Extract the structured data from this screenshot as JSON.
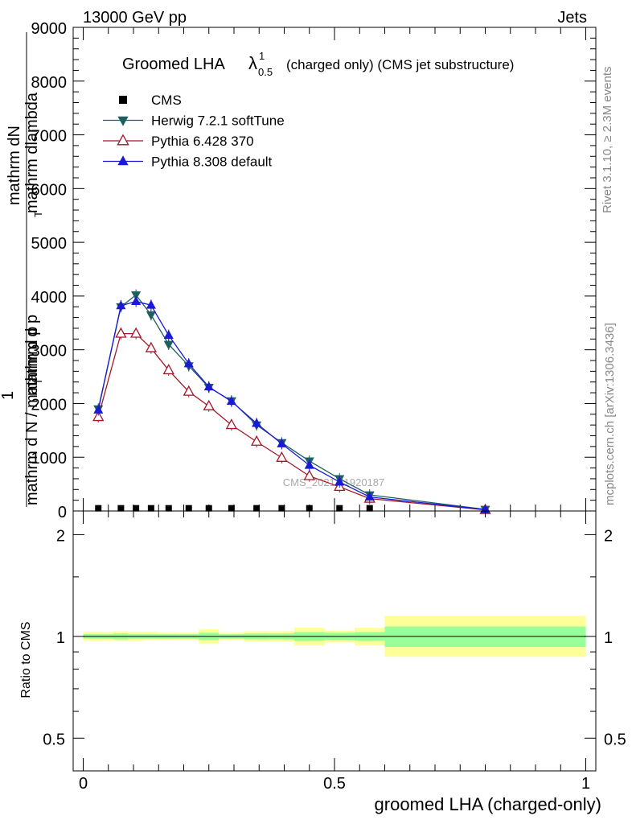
{
  "header": {
    "energy_label": "13000 GeV pp",
    "category_label": "Jets"
  },
  "side_text": {
    "rivet": "Rivet 3.1.10, ≥ 2.3M events",
    "mcplots": "mcplots.cern.ch [arXiv:1306.3436]"
  },
  "chart_data": [
    {
      "type": "line",
      "title": "Groomed LHA",
      "title_symbol": "λ",
      "title_sup": "1",
      "title_sub": "0.5",
      "title_suffix": "(charged only) (CMS jet substructure)",
      "watermark": "CMS_2021_I1920187",
      "ylabel_top": "mathrm dN",
      "ylabel_upper_small": "mathrm d p",
      "ylabel_upper_sub": "T",
      "ylabel_upper_tail": "mathrm dlambda",
      "ylabel_one": "1",
      "ylabel_bottom": "mathrm d N / mathrm d p",
      "ylabel_bottom_sub": "T",
      "ylim": [
        0,
        9000
      ],
      "yticks": [
        {
          "value": 0,
          "label": "0"
        },
        {
          "value": 1000,
          "label": "1000"
        },
        {
          "value": 2000,
          "label": "2000"
        },
        {
          "value": 3000,
          "label": "3000"
        },
        {
          "value": 4000,
          "label": "4000"
        },
        {
          "value": 5000,
          "label": "5000"
        },
        {
          "value": 6000,
          "label": "6000"
        },
        {
          "value": 7000,
          "label": "7000"
        },
        {
          "value": 8000,
          "label": "8000"
        },
        {
          "value": 9000,
          "label": "9000"
        }
      ],
      "xlim": [
        -0.02,
        1.02
      ],
      "legend_position": "top-left",
      "series": [
        {
          "name": "CMS",
          "color": "#000000",
          "marker": "square",
          "x": [
            0.03,
            0.075,
            0.105,
            0.135,
            0.17,
            0.21,
            0.25,
            0.295,
            0.345,
            0.395,
            0.45,
            0.51,
            0.57
          ],
          "y": [
            20,
            20,
            20,
            20,
            20,
            20,
            20,
            20,
            20,
            20,
            20,
            20,
            20
          ]
        },
        {
          "name": "Herwig 7.2.1 softTune",
          "color": "#1e5f5f",
          "marker": "triangle-down",
          "x": [
            0.03,
            0.075,
            0.105,
            0.135,
            0.17,
            0.21,
            0.25,
            0.295,
            0.345,
            0.395,
            0.45,
            0.51,
            0.57,
            0.8
          ],
          "y": [
            1900,
            3800,
            4020,
            3650,
            3100,
            2700,
            2300,
            2050,
            1600,
            1270,
            930,
            600,
            300,
            30
          ]
        },
        {
          "name": "Pythia 6.428 370",
          "color": "#a0182a",
          "marker": "triangle-open",
          "x": [
            0.03,
            0.075,
            0.105,
            0.135,
            0.17,
            0.21,
            0.25,
            0.295,
            0.345,
            0.395,
            0.45,
            0.51,
            0.57,
            0.8
          ],
          "y": [
            1750,
            3300,
            3300,
            3030,
            2620,
            2220,
            1950,
            1600,
            1290,
            990,
            650,
            450,
            230,
            20
          ]
        },
        {
          "name": "Pythia 8.308 default",
          "color": "#1a1ad6",
          "marker": "triangle-up",
          "x": [
            0.03,
            0.075,
            0.105,
            0.135,
            0.17,
            0.21,
            0.25,
            0.295,
            0.345,
            0.395,
            0.45,
            0.51,
            0.57,
            0.8
          ],
          "y": [
            1880,
            3820,
            3900,
            3830,
            3270,
            2740,
            2310,
            2040,
            1630,
            1250,
            850,
            540,
            260,
            25
          ]
        }
      ]
    },
    {
      "type": "area",
      "ylabel": "Ratio to CMS",
      "xlabel": "groomed LHA (charged-only)",
      "ylim": [
        0.4,
        2.35
      ],
      "log_scale_y": true,
      "xlim": [
        -0.02,
        1.02
      ],
      "xticks": [
        {
          "value": 0,
          "label": "0"
        },
        {
          "value": 0.5,
          "label": "0.5"
        },
        {
          "value": 1,
          "label": "1"
        }
      ],
      "yticks": [
        {
          "value": 0.5,
          "label": "0.5"
        },
        {
          "value": 1,
          "label": "1"
        },
        {
          "value": 2,
          "label": "2"
        }
      ],
      "band_colors": {
        "outer": "#ffff99",
        "inner": "#99ff99"
      },
      "bands": [
        {
          "x0": 0.0,
          "x1": 0.06,
          "outer": [
            0.97,
            1.03
          ],
          "inner": [
            0.985,
            1.015
          ]
        },
        {
          "x0": 0.06,
          "x1": 0.09,
          "outer": [
            0.97,
            1.035
          ],
          "inner": [
            0.98,
            1.02
          ]
        },
        {
          "x0": 0.09,
          "x1": 0.12,
          "outer": [
            0.97,
            1.03
          ],
          "inner": [
            0.985,
            1.015
          ]
        },
        {
          "x0": 0.12,
          "x1": 0.15,
          "outer": [
            0.975,
            1.03
          ],
          "inner": [
            0.985,
            1.015
          ]
        },
        {
          "x0": 0.15,
          "x1": 0.19,
          "outer": [
            0.975,
            1.025
          ],
          "inner": [
            0.985,
            1.015
          ]
        },
        {
          "x0": 0.19,
          "x1": 0.23,
          "outer": [
            0.975,
            1.025
          ],
          "inner": [
            0.985,
            1.015
          ]
        },
        {
          "x0": 0.23,
          "x1": 0.27,
          "outer": [
            0.95,
            1.05
          ],
          "inner": [
            0.975,
            1.025
          ]
        },
        {
          "x0": 0.27,
          "x1": 0.32,
          "outer": [
            0.975,
            1.025
          ],
          "inner": [
            0.985,
            1.015
          ]
        },
        {
          "x0": 0.32,
          "x1": 0.37,
          "outer": [
            0.965,
            1.035
          ],
          "inner": [
            0.98,
            1.02
          ]
        },
        {
          "x0": 0.37,
          "x1": 0.42,
          "outer": [
            0.965,
            1.035
          ],
          "inner": [
            0.98,
            1.02
          ]
        },
        {
          "x0": 0.42,
          "x1": 0.48,
          "outer": [
            0.94,
            1.06
          ],
          "inner": [
            0.97,
            1.03
          ]
        },
        {
          "x0": 0.48,
          "x1": 0.54,
          "outer": [
            0.96,
            1.04
          ],
          "inner": [
            0.975,
            1.025
          ]
        },
        {
          "x0": 0.54,
          "x1": 0.6,
          "outer": [
            0.94,
            1.06
          ],
          "inner": [
            0.97,
            1.03
          ]
        },
        {
          "x0": 0.6,
          "x1": 1.0,
          "outer": [
            0.87,
            1.15
          ],
          "inner": [
            0.93,
            1.07
          ]
        }
      ]
    }
  ]
}
